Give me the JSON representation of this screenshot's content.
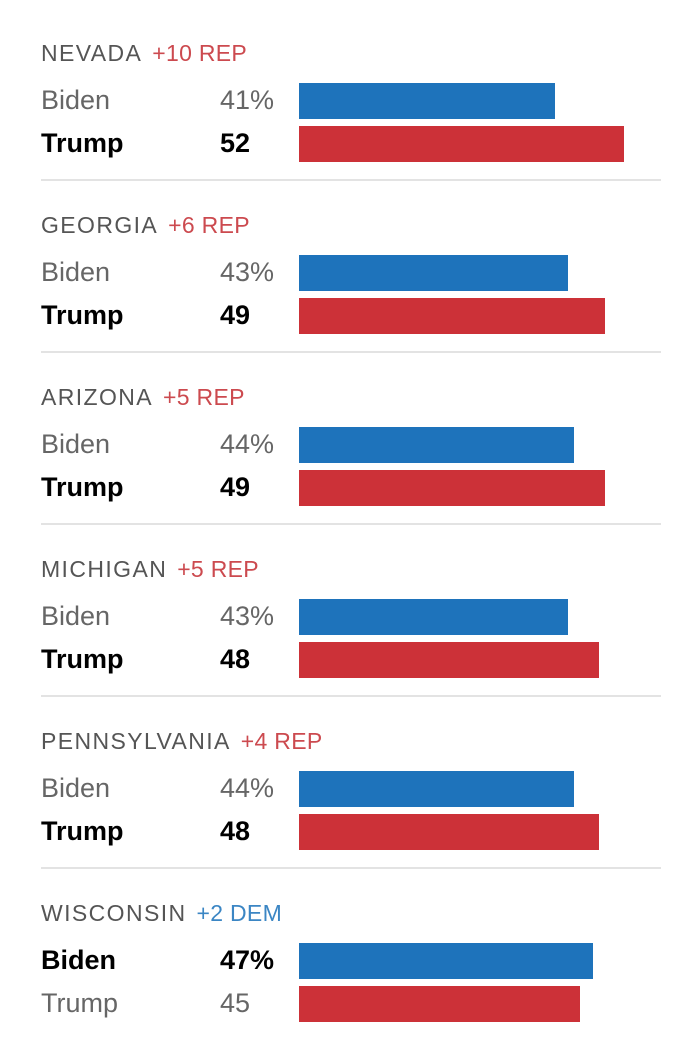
{
  "colors": {
    "dem": "#1e73bb",
    "rep": "#cc3138",
    "dem_text": "#3b86c4",
    "rep_text": "#cc4a4f",
    "leader_text": "#000000",
    "trailer_text": "#666666"
  },
  "chart_data": {
    "type": "bar",
    "orientation": "horizontal",
    "xlim": [
      0,
      56
    ],
    "title": "",
    "xlabel": "",
    "ylabel": "",
    "series_names": [
      "Biden",
      "Trump"
    ],
    "groups": [
      {
        "state": "NEVADA",
        "margin_text": "+10 REP",
        "margin_party": "rep",
        "rows": [
          {
            "candidate": "Biden",
            "party": "dem",
            "value": 41,
            "label": "41%",
            "leader": false
          },
          {
            "candidate": "Trump",
            "party": "rep",
            "value": 52,
            "label": "52",
            "leader": true
          }
        ]
      },
      {
        "state": "GEORGIA",
        "margin_text": "+6 REP",
        "margin_party": "rep",
        "rows": [
          {
            "candidate": "Biden",
            "party": "dem",
            "value": 43,
            "label": "43%",
            "leader": false
          },
          {
            "candidate": "Trump",
            "party": "rep",
            "value": 49,
            "label": "49",
            "leader": true
          }
        ]
      },
      {
        "state": "ARIZONA",
        "margin_text": "+5 REP",
        "margin_party": "rep",
        "rows": [
          {
            "candidate": "Biden",
            "party": "dem",
            "value": 44,
            "label": "44%",
            "leader": false
          },
          {
            "candidate": "Trump",
            "party": "rep",
            "value": 49,
            "label": "49",
            "leader": true
          }
        ]
      },
      {
        "state": "MICHIGAN",
        "margin_text": "+5 REP",
        "margin_party": "rep",
        "rows": [
          {
            "candidate": "Biden",
            "party": "dem",
            "value": 43,
            "label": "43%",
            "leader": false
          },
          {
            "candidate": "Trump",
            "party": "rep",
            "value": 48,
            "label": "48",
            "leader": true
          }
        ]
      },
      {
        "state": "PENNSYLVANIA",
        "margin_text": "+4 REP",
        "margin_party": "rep",
        "rows": [
          {
            "candidate": "Biden",
            "party": "dem",
            "value": 44,
            "label": "44%",
            "leader": false
          },
          {
            "candidate": "Trump",
            "party": "rep",
            "value": 48,
            "label": "48",
            "leader": true
          }
        ]
      },
      {
        "state": "WISCONSIN",
        "margin_text": "+2 DEM",
        "margin_party": "dem",
        "rows": [
          {
            "candidate": "Biden",
            "party": "dem",
            "value": 47,
            "label": "47%",
            "leader": true
          },
          {
            "candidate": "Trump",
            "party": "rep",
            "value": 45,
            "label": "45",
            "leader": false
          }
        ]
      }
    ]
  }
}
